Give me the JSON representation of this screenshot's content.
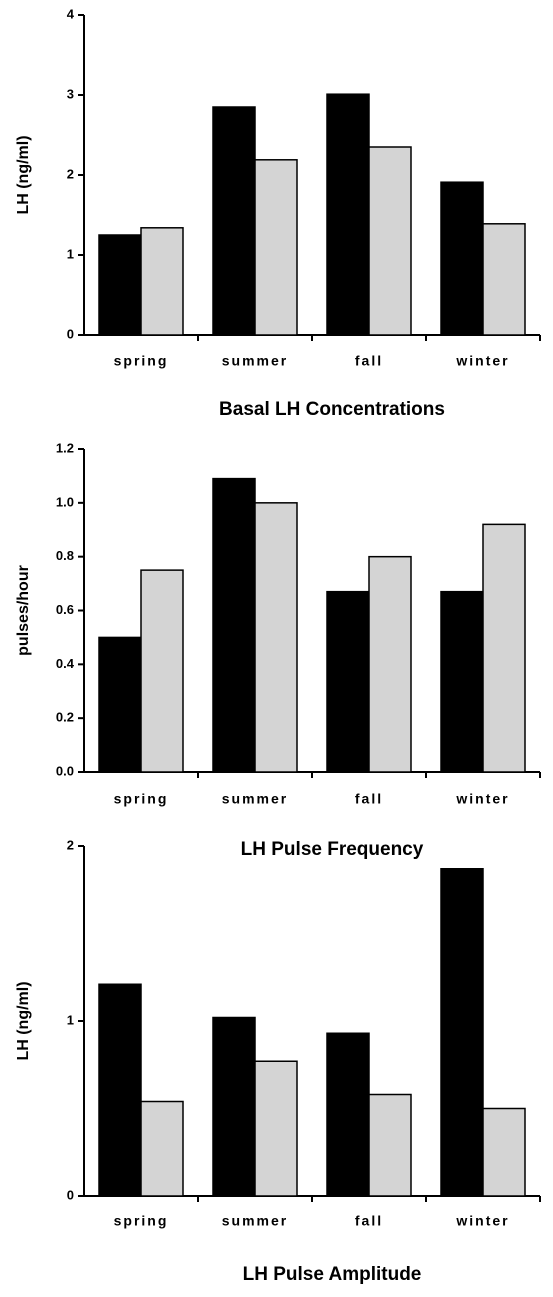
{
  "chart_data": [
    {
      "type": "bar",
      "title": "Basal LH Concentrations",
      "y_label": "LH  (ng/ml)",
      "categories": [
        "spring",
        "summer",
        "fall",
        "winter"
      ],
      "series": [
        {
          "color": "#000000",
          "values": [
            1.25,
            2.85,
            3.01,
            1.91
          ]
        },
        {
          "color": "#d4d4d4",
          "values": [
            1.34,
            2.19,
            2.35,
            1.39
          ]
        }
      ],
      "ylim": [
        0,
        4
      ],
      "yticks": [
        0,
        1,
        2,
        3,
        4
      ]
    },
    {
      "type": "bar",
      "title": "LH Pulse Frequency",
      "y_label": "pulses/hour",
      "categories": [
        "spring",
        "summer",
        "fall",
        "winter"
      ],
      "series": [
        {
          "color": "#000000",
          "values": [
            0.5,
            1.09,
            0.67,
            0.67
          ]
        },
        {
          "color": "#d4d4d4",
          "values": [
            0.75,
            1.0,
            0.8,
            0.92
          ]
        }
      ],
      "ylim": [
        0,
        1.2
      ],
      "yticks": [
        {
          "value": 0,
          "label": "0.0"
        },
        0.2,
        0.4,
        0.6,
        0.8,
        {
          "value": 1,
          "label": "1.0"
        },
        1.2
      ]
    },
    {
      "type": "bar",
      "title": "LH Pulse Amplitude",
      "y_label": "LH  (ng/ml)",
      "categories": [
        "spring",
        "summer",
        "fall",
        "winter"
      ],
      "series": [
        {
          "color": "#000000",
          "values": [
            1.21,
            1.02,
            0.93,
            1.87
          ]
        },
        {
          "color": "#d4d4d4",
          "values": [
            0.54,
            0.77,
            0.58,
            0.5
          ]
        }
      ],
      "ylim": [
        0,
        2
      ],
      "yticks": [
        0,
        1,
        2
      ]
    }
  ]
}
